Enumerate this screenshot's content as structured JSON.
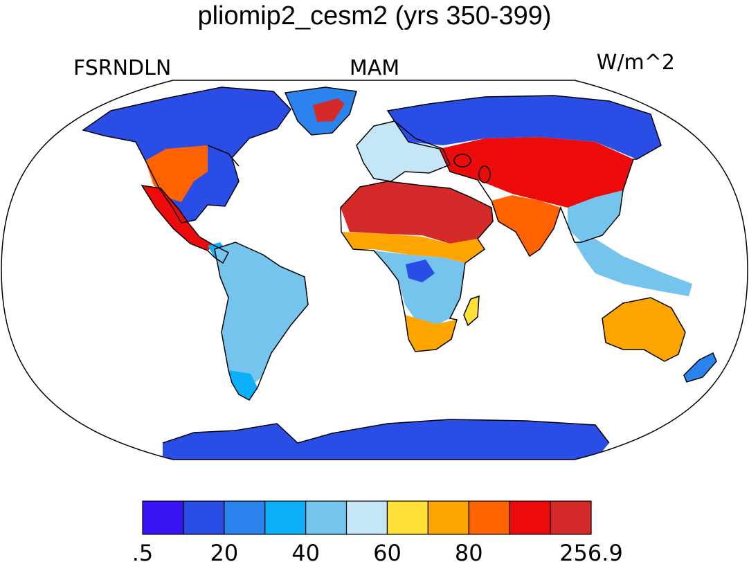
{
  "title": "pliomip2_cesm2 (yrs 350-399)",
  "variable": "FSRNDLN",
  "season": "MAM",
  "units": "W/m^2",
  "colorbar": {
    "colors": [
      "#3a14f2",
      "#2a4de6",
      "#2b84ee",
      "#0cb0f8",
      "#74c4ee",
      "#c4e6f6",
      "#ffe038",
      "#ffa500",
      "#ff6200",
      "#ec0a0a",
      "#d42a2a"
    ],
    "tick_labels": [
      ".5",
      "20",
      "40",
      "60",
      "80",
      "256.9"
    ]
  },
  "regions": [
    {
      "name": "north-america",
      "level": 1
    },
    {
      "name": "us-southwest",
      "level": 8
    },
    {
      "name": "mexico",
      "level": 9
    },
    {
      "name": "central-america",
      "level": 3
    },
    {
      "name": "greenland",
      "level": 2
    },
    {
      "name": "greenland-east",
      "level": 10
    },
    {
      "name": "south-america",
      "level": 4
    },
    {
      "name": "patagonia",
      "level": 3
    },
    {
      "name": "sahara-arabia",
      "level": 10
    },
    {
      "name": "sahel",
      "level": 7
    },
    {
      "name": "central-africa",
      "level": 4
    },
    {
      "name": "congo",
      "level": 1
    },
    {
      "name": "southern-africa",
      "level": 7
    },
    {
      "name": "madagascar",
      "level": 6
    },
    {
      "name": "europe",
      "level": 5
    },
    {
      "name": "siberia",
      "level": 1
    },
    {
      "name": "central-asia",
      "level": 9
    },
    {
      "name": "india",
      "level": 8
    },
    {
      "name": "china-east",
      "level": 4
    },
    {
      "name": "southeast-asia",
      "level": 4
    },
    {
      "name": "australia",
      "level": 7
    },
    {
      "name": "new-zealand",
      "level": 2
    },
    {
      "name": "antarctica",
      "level": 1
    }
  ]
}
